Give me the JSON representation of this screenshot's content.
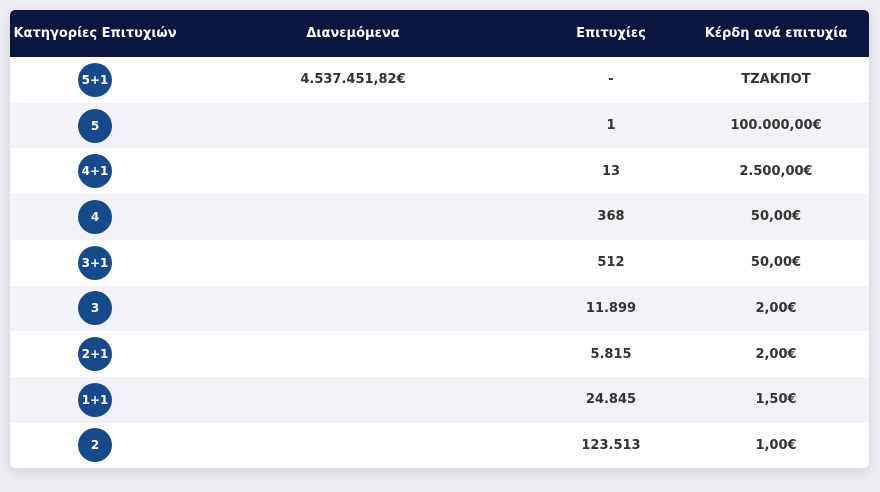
{
  "table": {
    "header": [
      "Κατηγορίες Επιτυχιών",
      "Διανεμόμενα",
      "Επιτυχίες",
      "Κέρδη ανά επιτυχία"
    ],
    "rows": [
      [
        "5+1",
        "4.537.451,82€",
        "-",
        "ΤΖΑΚΠΟΤ"
      ],
      [
        "5",
        null,
        "1",
        "100.000,00€"
      ],
      [
        "4+1",
        null,
        "13",
        "2.500,00€"
      ],
      [
        "4",
        null,
        "368",
        "50,00€"
      ],
      [
        "3+1",
        null,
        "512",
        "50,00€"
      ],
      [
        "3",
        null,
        "11.899",
        "2,00€"
      ],
      [
        "2+1",
        null,
        "5.815",
        "2,00€"
      ],
      [
        "1+1",
        null,
        "24.845",
        "1,50€"
      ],
      [
        "2",
        null,
        "123.513",
        "1,00€"
      ]
    ]
  }
}
